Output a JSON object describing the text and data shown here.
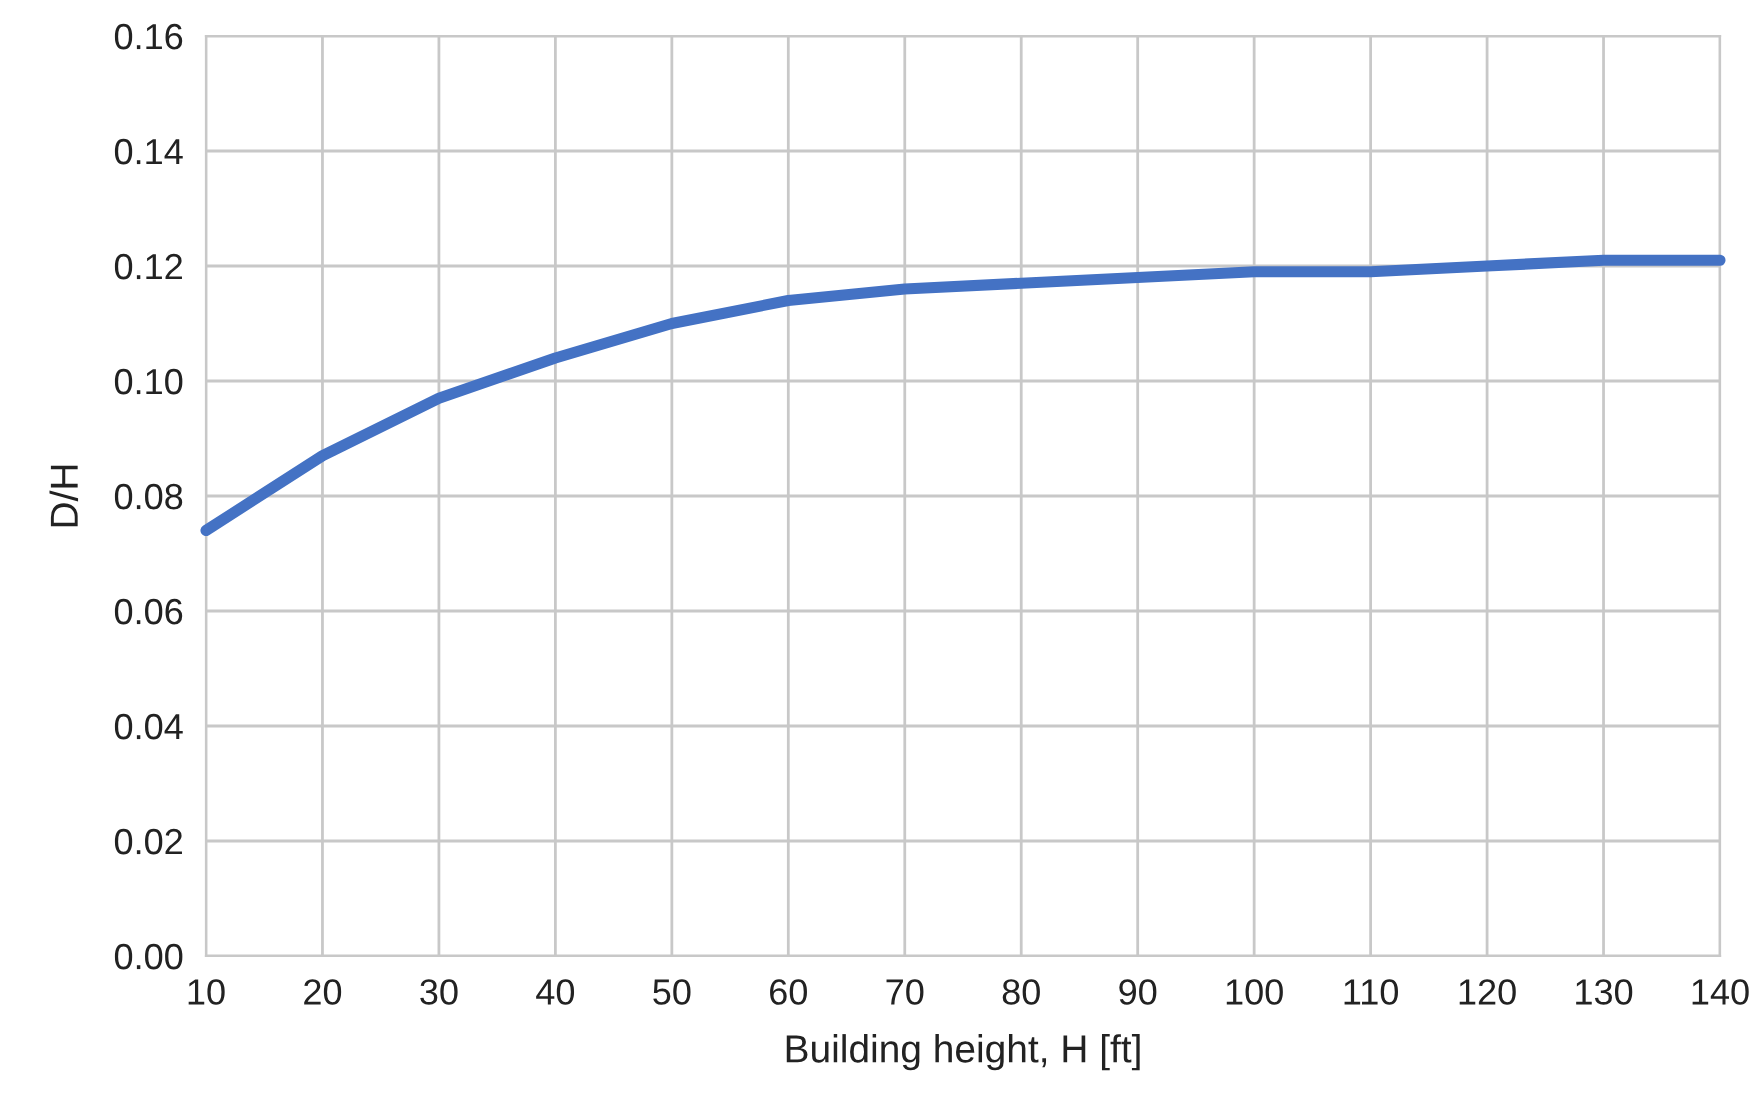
{
  "chart_data": {
    "type": "line",
    "xlabel": "Building height, H [ft]",
    "ylabel": "D/H",
    "x": [
      10,
      20,
      30,
      40,
      50,
      60,
      70,
      80,
      90,
      100,
      110,
      120,
      130,
      140
    ],
    "series": [
      {
        "color": "#4472c4",
        "values": [
          0.074,
          0.087,
          0.097,
          0.104,
          0.11,
          0.114,
          0.116,
          0.117,
          0.118,
          0.119,
          0.119,
          0.12,
          0.121,
          0.121
        ]
      }
    ],
    "xlim": [
      10,
      140
    ],
    "xticks": [
      10,
      20,
      30,
      40,
      50,
      60,
      70,
      80,
      90,
      100,
      110,
      120,
      130,
      140
    ],
    "ylim": [
      0,
      0.16
    ],
    "yticks": [
      {
        "value": 0,
        "label": "0.00"
      },
      {
        "value": 0.02,
        "label": "0.02"
      },
      {
        "value": 0.04,
        "label": "0.04"
      },
      {
        "value": 0.06,
        "label": "0.06"
      },
      {
        "value": 0.08,
        "label": "0.08"
      },
      {
        "value": 0.1,
        "label": "0.10"
      },
      {
        "value": 0.12,
        "label": "0.12"
      },
      {
        "value": 0.14,
        "label": "0.14"
      },
      {
        "value": 0.16,
        "label": "0.16"
      }
    ],
    "grid": true,
    "marker": "none",
    "line_style": "solid"
  }
}
